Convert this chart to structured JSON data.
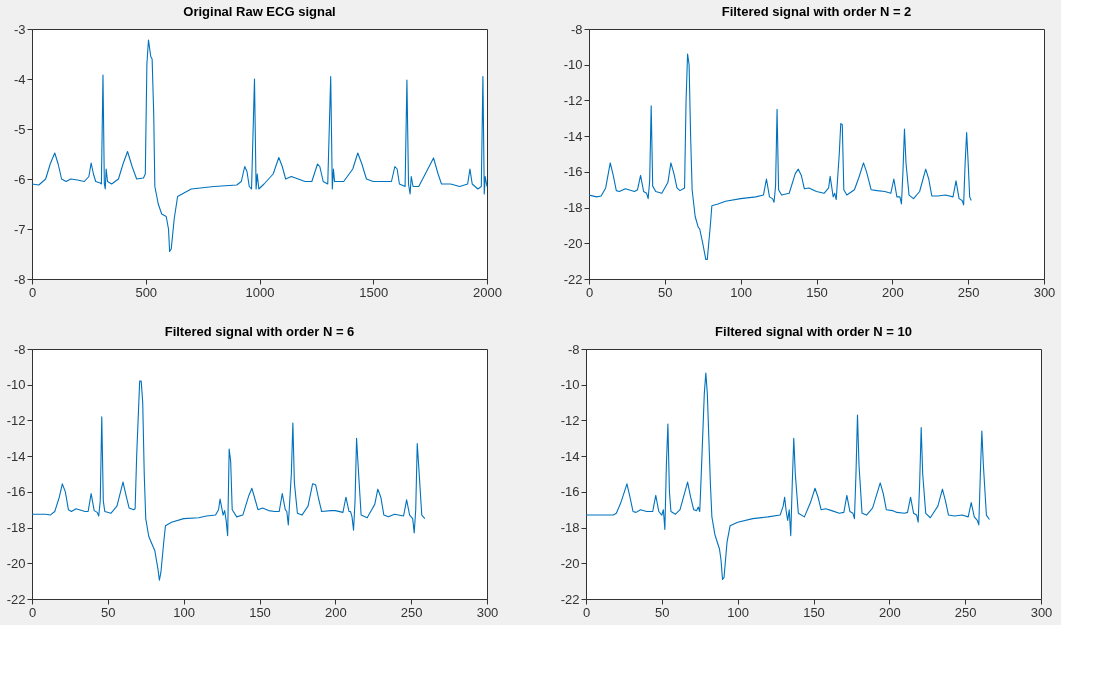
{
  "chart_data": [
    {
      "type": "line",
      "title": "Original Raw ECG signal",
      "color": "#0072bd",
      "xlim": [
        0,
        2000
      ],
      "ylim": [
        -8,
        -3
      ],
      "xticks": [
        0,
        500,
        1000,
        1500,
        2000
      ],
      "yticks": [
        -8,
        -7,
        -6,
        -5,
        -4,
        -3
      ],
      "x": [
        0,
        30,
        60,
        80,
        100,
        115,
        130,
        150,
        170,
        200,
        230,
        250,
        260,
        270,
        280,
        300,
        305,
        312,
        318,
        322,
        326,
        332,
        350,
        380,
        400,
        420,
        440,
        460,
        490,
        498,
        505,
        512,
        522,
        528,
        535,
        540,
        555,
        570,
        590,
        600,
        605,
        612,
        625,
        640,
        660,
        700,
        800,
        900,
        920,
        935,
        945,
        955,
        965,
        978,
        985,
        990,
        997,
        1020,
        1060,
        1085,
        1100,
        1115,
        1140,
        1170,
        1200,
        1230,
        1255,
        1265,
        1280,
        1300,
        1313,
        1320,
        1325,
        1330,
        1370,
        1410,
        1432,
        1450,
        1470,
        1500,
        1550,
        1580,
        1595,
        1605,
        1615,
        1640,
        1648,
        1655,
        1662,
        1667,
        1675,
        1700,
        1740,
        1765,
        1785,
        1800,
        1840,
        1880,
        1915,
        1925,
        1935,
        1960,
        1975,
        1982,
        1988,
        1992,
        2000
      ],
      "values": [
        -6.1,
        -6.12,
        -6.0,
        -5.7,
        -5.48,
        -5.7,
        -6.0,
        -6.05,
        -6.0,
        -6.02,
        -6.05,
        -5.95,
        -5.68,
        -5.9,
        -6.05,
        -6.08,
        -6.1,
        -3.92,
        -6.1,
        -6.2,
        -5.8,
        -6.05,
        -6.1,
        -6.0,
        -5.7,
        -5.45,
        -5.75,
        -6.0,
        -5.98,
        -5.9,
        -3.7,
        -3.22,
        -3.55,
        -3.6,
        -4.7,
        -6.15,
        -6.5,
        -6.7,
        -6.75,
        -7.0,
        -7.45,
        -7.4,
        -6.8,
        -6.35,
        -6.3,
        -6.2,
        -6.15,
        -6.12,
        -6.05,
        -5.75,
        -5.85,
        -6.15,
        -6.2,
        -4.0,
        -6.2,
        -5.9,
        -6.2,
        -6.1,
        -5.9,
        -5.57,
        -5.75,
        -6.0,
        -5.95,
        -6.0,
        -6.05,
        -6.05,
        -5.7,
        -5.75,
        -6.05,
        -6.1,
        -3.95,
        -6.2,
        -5.8,
        -6.05,
        -6.05,
        -5.8,
        -5.48,
        -5.7,
        -6.0,
        -6.05,
        -6.05,
        -6.05,
        -5.75,
        -5.8,
        -6.1,
        -6.15,
        -4.02,
        -6.1,
        -6.3,
        -5.95,
        -6.15,
        -6.15,
        -5.8,
        -5.58,
        -5.9,
        -6.1,
        -6.1,
        -6.15,
        -6.1,
        -5.8,
        -6.1,
        -6.2,
        -6.15,
        -3.95,
        -6.3,
        -5.95,
        -6.15
      ]
    },
    {
      "type": "line",
      "title": "Filtered signal with order N = 2",
      "color": "#0072bd",
      "xlim": [
        0,
        300
      ],
      "ylim": [
        -22,
        -8
      ],
      "xticks": [
        0,
        50,
        100,
        150,
        200,
        250,
        300
      ],
      "yticks": [
        -22,
        -20,
        -18,
        -16,
        -14,
        -12,
        -10,
        -8
      ],
      "x": [
        0,
        5,
        8,
        11,
        14,
        16,
        18,
        20,
        24,
        30,
        32,
        34,
        36,
        38,
        39,
        40,
        41,
        42,
        44,
        48,
        52,
        54,
        56,
        58,
        60,
        63,
        64,
        65,
        66,
        67,
        68,
        70,
        72,
        73,
        75,
        77,
        78,
        80,
        81,
        85,
        90,
        100,
        110,
        115,
        117,
        119,
        121,
        122,
        123,
        124,
        125,
        127,
        132,
        136,
        138,
        140,
        142,
        145,
        150,
        155,
        158,
        159,
        161,
        162,
        163,
        165,
        166,
        167,
        168,
        170,
        175,
        178,
        181,
        183,
        186,
        190,
        195,
        199,
        201,
        203,
        205,
        206,
        207,
        208,
        209,
        211,
        214,
        218,
        222,
        224,
        226,
        230,
        235,
        240,
        242,
        244,
        246,
        247,
        248,
        249,
        250,
        251,
        252
      ],
      "values": [
        -17.3,
        -17.4,
        -17.35,
        -16.9,
        -15.5,
        -16.2,
        -17.05,
        -17.1,
        -16.95,
        -17.1,
        -17.0,
        -16.2,
        -17.1,
        -17.2,
        -17.5,
        -16.5,
        -12.3,
        -16.8,
        -17.1,
        -17.2,
        -16.6,
        -15.5,
        -16.1,
        -16.9,
        -17.05,
        -16.9,
        -12.0,
        -9.4,
        -10.0,
        -14.0,
        -17.0,
        -18.5,
        -19.1,
        -19.2,
        -20.0,
        -20.9,
        -20.9,
        -19.0,
        -17.9,
        -17.8,
        -17.65,
        -17.5,
        -17.4,
        -17.3,
        -16.4,
        -17.4,
        -17.5,
        -17.7,
        -16.8,
        -12.5,
        -17.0,
        -17.3,
        -17.2,
        -16.1,
        -15.85,
        -16.2,
        -16.95,
        -16.9,
        -17.1,
        -17.2,
        -16.9,
        -16.25,
        -17.4,
        -17.2,
        -17.55,
        -15.0,
        -13.3,
        -13.35,
        -17.0,
        -17.3,
        -17.0,
        -16.3,
        -15.5,
        -16.0,
        -17.0,
        -17.05,
        -17.1,
        -17.2,
        -16.4,
        -17.4,
        -17.4,
        -17.8,
        -16.0,
        -13.6,
        -15.5,
        -17.3,
        -17.5,
        -17.1,
        -15.85,
        -16.4,
        -17.35,
        -17.35,
        -17.3,
        -17.4,
        -16.5,
        -17.5,
        -17.6,
        -17.85,
        -15.5,
        -13.8,
        -15.5,
        -17.4,
        -17.6
      ]
    },
    {
      "type": "line",
      "title": "Filtered signal with order N = 6",
      "color": "#0072bd",
      "xlim": [
        0,
        300
      ],
      "ylim": [
        -22,
        -8
      ],
      "xticks": [
        0,
        50,
        100,
        150,
        200,
        250,
        300
      ],
      "yticks": [
        -22,
        -20,
        -18,
        -16,
        -14,
        -12,
        -10,
        -8
      ],
      "x": [
        0,
        9,
        12,
        15,
        18,
        20,
        22,
        24,
        26,
        29,
        35,
        37,
        39,
        41,
        43,
        44,
        45,
        46,
        47,
        48,
        52,
        56,
        60,
        62,
        64,
        67,
        68,
        69,
        71,
        72,
        73,
        74,
        75,
        77,
        80,
        81,
        83,
        84,
        85,
        87,
        88,
        92,
        100,
        110,
        115,
        121,
        123,
        124,
        126,
        127,
        128,
        129,
        130,
        131,
        132,
        135,
        139,
        143,
        145,
        147,
        149,
        152,
        156,
        160,
        163,
        165,
        167,
        168,
        169,
        171,
        172,
        173,
        175,
        178,
        182,
        185,
        187,
        189,
        191,
        197,
        200,
        205,
        207,
        209,
        210,
        211,
        212,
        213,
        214,
        215,
        217,
        221,
        226,
        228,
        230,
        232,
        235,
        239,
        245,
        247,
        249,
        251,
        252,
        253,
        254,
        255,
        257,
        259
      ],
      "values": [
        -17.25,
        -17.25,
        -17.3,
        -17.1,
        -16.3,
        -15.55,
        -16.0,
        -17.0,
        -17.1,
        -16.95,
        -17.1,
        -17.1,
        -16.1,
        -17.05,
        -17.15,
        -17.35,
        -16.5,
        -11.8,
        -16.5,
        -17.1,
        -17.2,
        -16.8,
        -15.45,
        -16.2,
        -16.9,
        -17.0,
        -16.95,
        -14.0,
        -9.8,
        -9.8,
        -11.0,
        -15.0,
        -17.5,
        -18.5,
        -19.1,
        -19.3,
        -20.3,
        -20.95,
        -20.5,
        -18.7,
        -17.9,
        -17.7,
        -17.5,
        -17.45,
        -17.35,
        -17.3,
        -17.0,
        -16.4,
        -17.3,
        -17.05,
        -17.6,
        -18.45,
        -13.6,
        -14.3,
        -17.0,
        -17.4,
        -17.3,
        -16.2,
        -15.8,
        -16.4,
        -17.0,
        -16.9,
        -17.05,
        -17.1,
        -17.1,
        -16.1,
        -17.0,
        -17.1,
        -17.85,
        -15.0,
        -12.15,
        -15.5,
        -17.2,
        -17.3,
        -16.8,
        -15.55,
        -15.6,
        -16.4,
        -17.1,
        -17.05,
        -17.05,
        -17.15,
        -16.3,
        -17.1,
        -17.1,
        -17.4,
        -18.15,
        -16.5,
        -13.0,
        -14.5,
        -17.3,
        -17.45,
        -16.7,
        -15.85,
        -16.3,
        -17.3,
        -17.4,
        -17.25,
        -17.35,
        -16.45,
        -17.3,
        -17.5,
        -18.3,
        -17.0,
        -13.3,
        -14.6,
        -17.3,
        -17.5
      ]
    },
    {
      "type": "line",
      "title": "Filtered signal with order N = 10",
      "color": "#0072bd",
      "xlim": [
        0,
        300
      ],
      "ylim": [
        -22,
        -8
      ],
      "xticks": [
        0,
        50,
        100,
        150,
        200,
        250,
        300
      ],
      "yticks": [
        -22,
        -20,
        -18,
        -16,
        -14,
        -12,
        -10,
        -8
      ],
      "x": [
        0,
        16,
        18,
        20,
        23,
        27,
        29,
        31,
        33,
        36,
        40,
        44,
        46,
        48,
        50,
        51,
        52,
        53,
        54,
        55,
        56,
        59,
        62,
        67,
        69,
        71,
        73,
        74,
        75,
        76,
        78,
        79,
        80,
        82,
        83,
        85,
        88,
        89,
        90,
        91,
        93,
        95,
        100,
        110,
        120,
        128,
        130,
        131,
        132,
        133,
        134,
        135,
        136,
        137,
        138,
        140,
        144,
        148,
        151,
        153,
        155,
        158,
        162,
        167,
        170,
        172,
        174,
        176,
        177,
        178,
        179,
        180,
        182,
        185,
        189,
        194,
        196,
        198,
        202,
        205,
        210,
        212,
        214,
        216,
        218,
        219,
        220,
        221,
        222,
        224,
        227,
        232,
        235,
        237,
        239,
        243,
        248,
        252,
        254,
        256,
        257,
        258,
        259,
        260,
        261,
        262,
        264,
        266
      ],
      "values": [
        -17.3,
        -17.3,
        -17.3,
        -17.2,
        -16.6,
        -15.55,
        -16.3,
        -17.1,
        -17.15,
        -17.0,
        -17.1,
        -17.1,
        -16.2,
        -17.1,
        -17.3,
        -17.0,
        -18.1,
        -14.5,
        -12.2,
        -16.0,
        -17.1,
        -17.25,
        -17.0,
        -15.45,
        -16.3,
        -17.0,
        -17.05,
        -16.85,
        -17.1,
        -15.0,
        -10.5,
        -9.35,
        -10.5,
        -15.5,
        -17.4,
        -18.4,
        -19.2,
        -19.8,
        -20.9,
        -20.8,
        -18.8,
        -17.9,
        -17.7,
        -17.5,
        -17.4,
        -17.3,
        -16.8,
        -16.3,
        -17.1,
        -17.6,
        -17.0,
        -18.45,
        -15.5,
        -13.0,
        -15.0,
        -17.2,
        -17.4,
        -16.6,
        -15.8,
        -16.3,
        -17.0,
        -16.95,
        -17.05,
        -17.2,
        -17.15,
        -16.2,
        -17.1,
        -17.2,
        -17.5,
        -15.0,
        -11.7,
        -14.5,
        -17.2,
        -17.3,
        -16.9,
        -15.5,
        -16.1,
        -17.0,
        -17.05,
        -17.15,
        -17.2,
        -17.15,
        -16.3,
        -17.2,
        -17.3,
        -17.7,
        -15.5,
        -12.4,
        -15.0,
        -17.2,
        -17.45,
        -16.8,
        -15.85,
        -16.5,
        -17.3,
        -17.35,
        -17.3,
        -17.4,
        -16.6,
        -17.4,
        -17.5,
        -17.6,
        -17.85,
        -15.0,
        -12.6,
        -14.5,
        -17.3,
        -17.55
      ]
    }
  ]
}
